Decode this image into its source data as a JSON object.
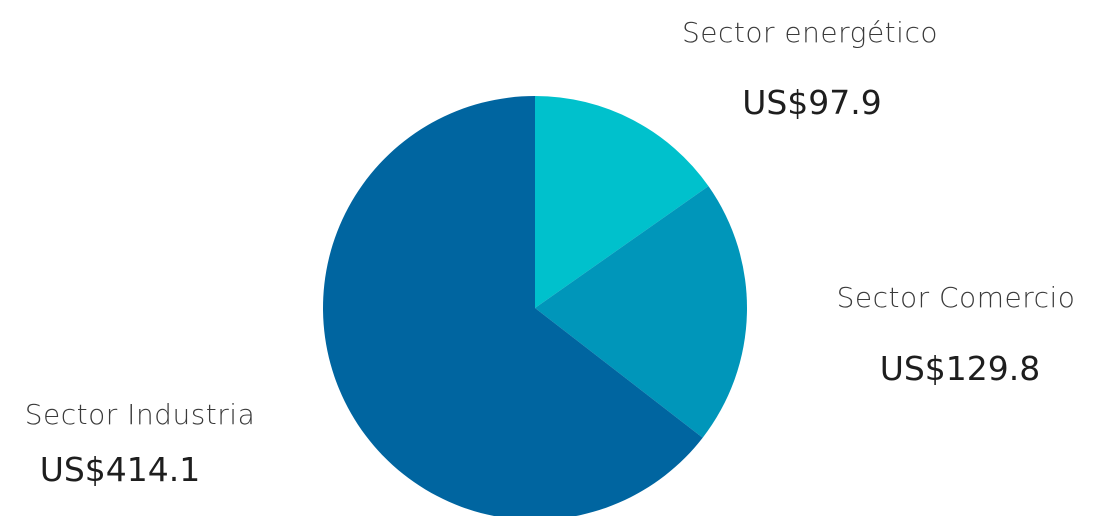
{
  "chart_data": {
    "type": "pie",
    "title": "",
    "slices": [
      {
        "name": "Sector energético",
        "value": 97.9,
        "value_label": "US$97.9",
        "color": "#00c1cc"
      },
      {
        "name": "Sector Comercio",
        "value": 129.8,
        "value_label": "US$129.8",
        "color": "#0096ba"
      },
      {
        "name": "Sector Industria",
        "value": 414.1,
        "value_label": "US$414.1",
        "color": "#0065a0"
      }
    ],
    "start": "12 o'clock",
    "direction": "clockwise",
    "legend": "none"
  }
}
